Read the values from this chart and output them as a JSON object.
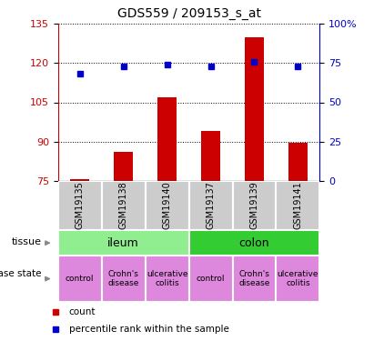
{
  "title": "GDS559 / 209153_s_at",
  "samples": [
    "GSM19135",
    "GSM19138",
    "GSM19140",
    "GSM19137",
    "GSM19139",
    "GSM19141"
  ],
  "counts": [
    75.5,
    86,
    107,
    94,
    130,
    89.5
  ],
  "percentiles": [
    68,
    73,
    74,
    73,
    76,
    73
  ],
  "ylim_left": [
    75,
    135
  ],
  "ylim_right": [
    0,
    100
  ],
  "yticks_left": [
    75,
    90,
    105,
    120,
    135
  ],
  "yticks_right": [
    0,
    25,
    50,
    75,
    100
  ],
  "bar_color": "#cc0000",
  "dot_color": "#0000cc",
  "tissue_info": [
    [
      "ileum",
      0,
      3,
      "#90ee90"
    ],
    [
      "colon",
      3,
      6,
      "#33cc33"
    ]
  ],
  "disease_labels": [
    "control",
    "Crohn's\ndisease",
    "ulcerative\ncolitis",
    "control",
    "Crohn's\ndisease",
    "ulcerative\ncolitis"
  ],
  "disease_color": "#dd88dd",
  "sample_bg": "#cccccc",
  "legend_count_color": "#cc0000",
  "legend_pct_color": "#0000cc",
  "left_axis_color": "#cc0000",
  "right_axis_color": "#0000cc",
  "fig_width": 4.11,
  "fig_height": 3.75,
  "dpi": 100
}
